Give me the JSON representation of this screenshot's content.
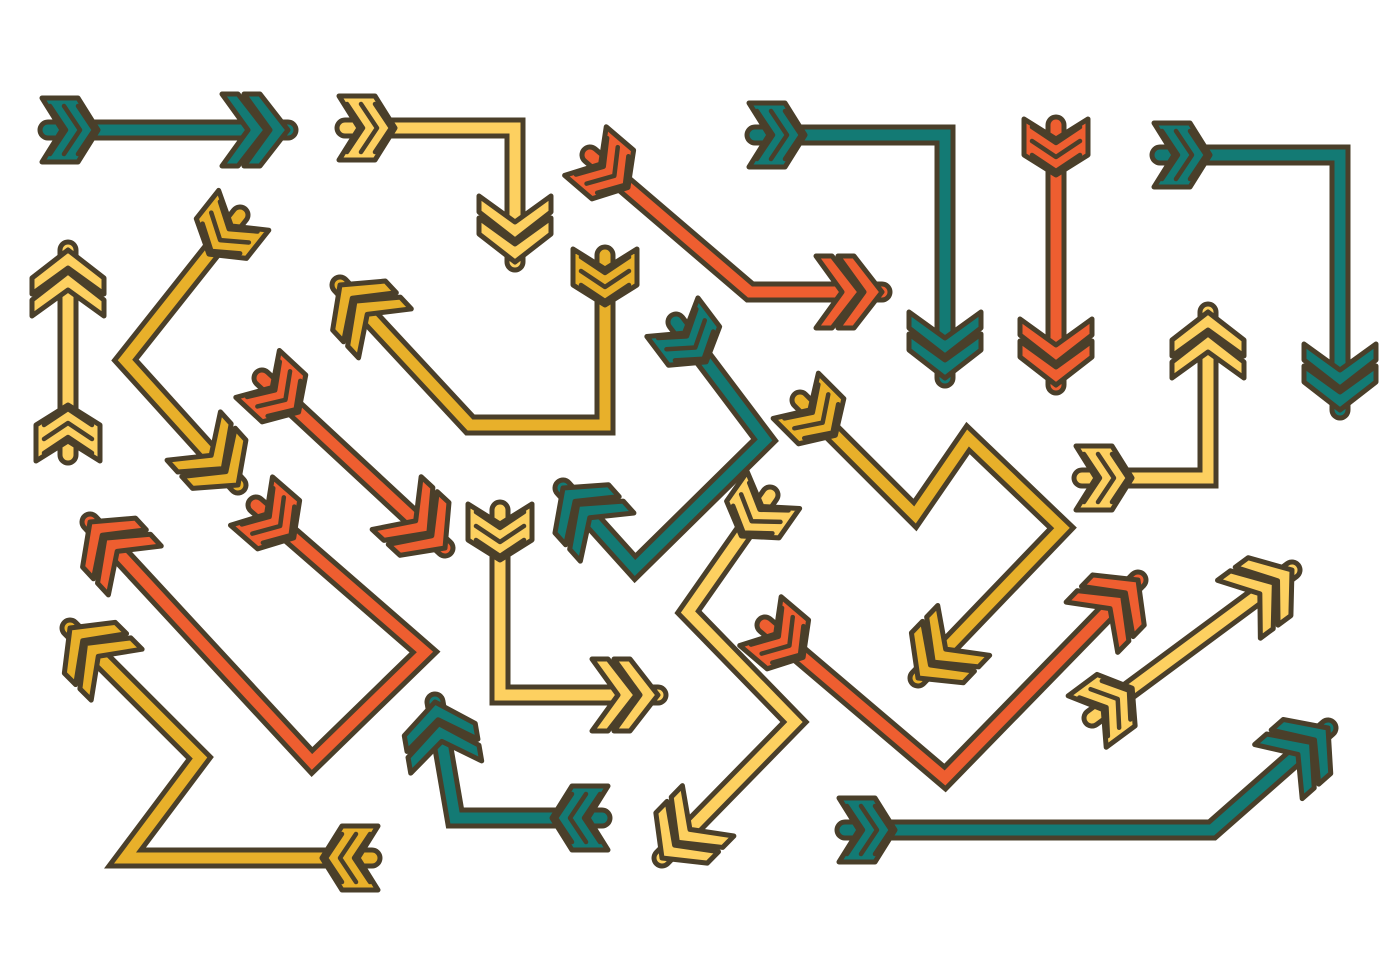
{
  "palette": {
    "outline": "#4a3f2a",
    "teal": "#137a74",
    "orange": "#ee5e30",
    "gold": "#e8b02a",
    "sand": "#fdd060",
    "background": "#ffffff"
  },
  "arrows": [
    {
      "color": "teal",
      "shape": "straight",
      "direction": "right"
    },
    {
      "color": "sand",
      "shape": "elbow",
      "direction": "down"
    },
    {
      "color": "orange",
      "shape": "elbow",
      "direction": "right"
    },
    {
      "color": "teal",
      "shape": "elbow",
      "direction": "down"
    },
    {
      "color": "orange",
      "shape": "straight",
      "direction": "down"
    },
    {
      "color": "teal",
      "shape": "elbow",
      "direction": "down"
    },
    {
      "color": "sand",
      "shape": "straight",
      "direction": "up"
    },
    {
      "color": "gold",
      "shape": "elbow",
      "direction": "down-right"
    },
    {
      "color": "gold",
      "shape": "u-turn",
      "direction": "up-left"
    },
    {
      "color": "orange",
      "shape": "straight",
      "direction": "down-right"
    },
    {
      "color": "teal",
      "shape": "elbow",
      "direction": "down-left"
    },
    {
      "color": "gold",
      "shape": "zigzag",
      "direction": "down-left"
    },
    {
      "color": "sand",
      "shape": "elbow",
      "direction": "up"
    },
    {
      "color": "orange",
      "shape": "u-turn",
      "direction": "up-left"
    },
    {
      "color": "gold",
      "shape": "zigzag",
      "direction": "up-left"
    },
    {
      "color": "sand",
      "shape": "elbow",
      "direction": "right"
    },
    {
      "color": "sand",
      "shape": "zigzag",
      "direction": "down-left"
    },
    {
      "color": "orange",
      "shape": "elbow",
      "direction": "up-right"
    },
    {
      "color": "sand",
      "shape": "straight",
      "direction": "up-right"
    },
    {
      "color": "teal",
      "shape": "elbow",
      "direction": "up"
    },
    {
      "color": "teal",
      "shape": "elbow",
      "direction": "up-right"
    }
  ]
}
